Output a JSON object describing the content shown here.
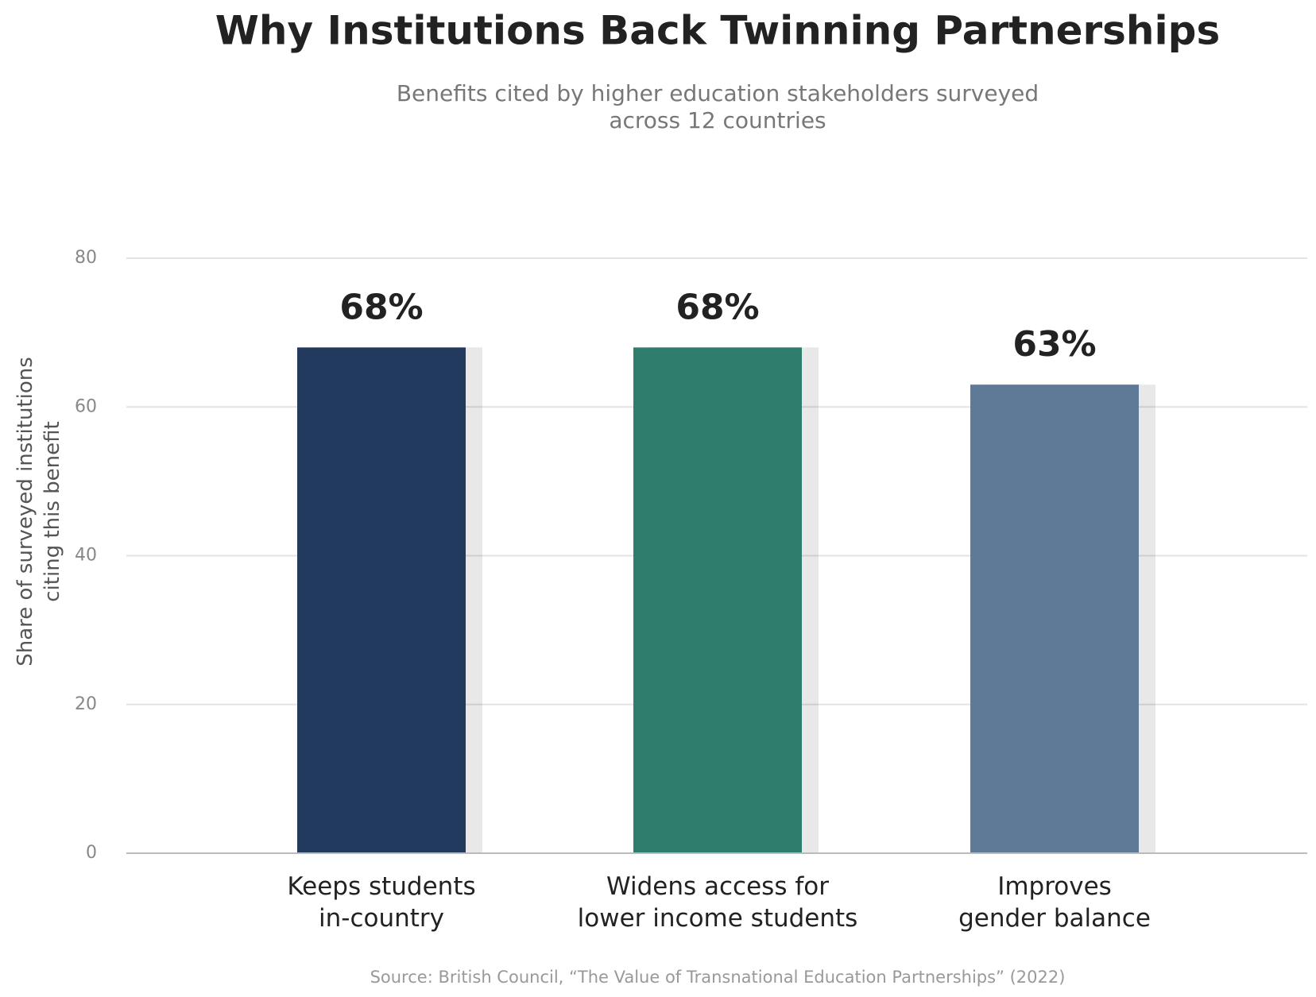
{
  "chart_data": {
    "type": "bar",
    "title": "Why Institutions Back Twinning Partnerships",
    "subtitle": "Benefits cited by higher education stakeholders surveyed\nacross 12 countries",
    "y_label": "Share of surveyed institutions\nciting this benefit",
    "source": "Source: British Council, “The Value of Transnational Education Partnerships” (2022)",
    "categories": [
      "Keeps students\nin-country",
      "Widens access for\nlower income students",
      "Improves\ngender balance"
    ],
    "values": [
      68,
      68,
      63
    ],
    "value_labels": [
      "68%",
      "68%",
      "63%"
    ],
    "colors": [
      "#213a5e",
      "#2e7d6d",
      "#5e7a97"
    ],
    "ylim": [
      0,
      80
    ],
    "yticks": [
      0,
      20,
      40,
      60,
      80
    ],
    "grid": true
  }
}
